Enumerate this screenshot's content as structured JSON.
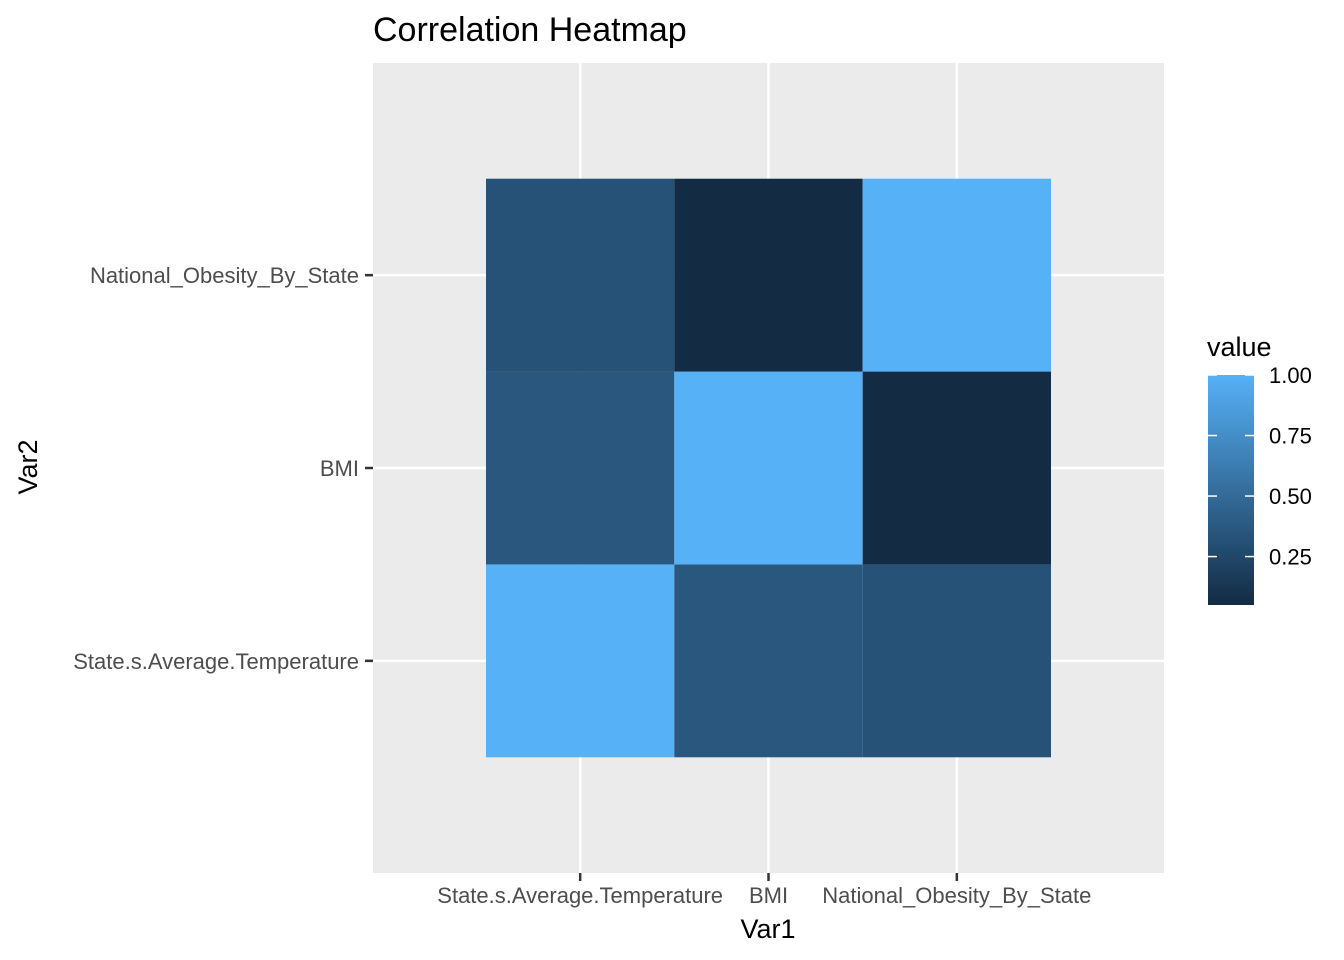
{
  "chart_data": {
    "type": "heatmap",
    "title": "Correlation Heatmap",
    "xlabel": "Var1",
    "ylabel": "Var2",
    "x_categories": [
      "State.s.Average.Temperature",
      "BMI",
      "National_Obesity_By_State"
    ],
    "y_categories": [
      "State.s.Average.Temperature",
      "BMI",
      "National_Obesity_By_State"
    ],
    "cells": [
      {
        "x": "State.s.Average.Temperature",
        "y": "State.s.Average.Temperature",
        "value": 1.0
      },
      {
        "x": "BMI",
        "y": "State.s.Average.Temperature",
        "value": 0.36
      },
      {
        "x": "National_Obesity_By_State",
        "y": "State.s.Average.Temperature",
        "value": 0.33
      },
      {
        "x": "State.s.Average.Temperature",
        "y": "BMI",
        "value": 0.36
      },
      {
        "x": "BMI",
        "y": "BMI",
        "value": 1.0
      },
      {
        "x": "National_Obesity_By_State",
        "y": "BMI",
        "value": 0.05
      },
      {
        "x": "State.s.Average.Temperature",
        "y": "National_Obesity_By_State",
        "value": 0.33
      },
      {
        "x": "BMI",
        "y": "National_Obesity_By_State",
        "value": 0.05
      },
      {
        "x": "National_Obesity_By_State",
        "y": "National_Obesity_By_State",
        "value": 1.0
      }
    ],
    "legend": {
      "title": "value",
      "placement": "right",
      "ticks": [
        1.0,
        0.75,
        0.5,
        0.25
      ],
      "tick_labels": [
        "1.00",
        "0.75",
        "0.50",
        "0.25"
      ],
      "range": [
        0.05,
        1.0
      ],
      "low_color": "#132B43",
      "high_color": "#56B1F7"
    },
    "panel_background": "#EBEBEB",
    "grid_color": "#FFFFFF",
    "grid": true
  }
}
